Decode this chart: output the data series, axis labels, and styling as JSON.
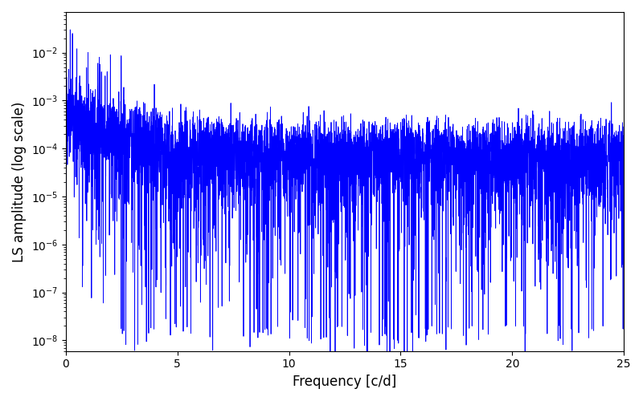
{
  "xlabel": "Frequency [c/d]",
  "ylabel": "LS amplitude (log scale)",
  "line_color": "#0000ff",
  "line_width": 0.6,
  "xlim": [
    0,
    25
  ],
  "ylim": [
    6e-09,
    0.07
  ],
  "freq_min": 0.01,
  "freq_max": 25.0,
  "n_points": 5000,
  "seed": 123,
  "background_color": "#ffffff",
  "figsize": [
    8.0,
    5.0
  ],
  "dpi": 100
}
